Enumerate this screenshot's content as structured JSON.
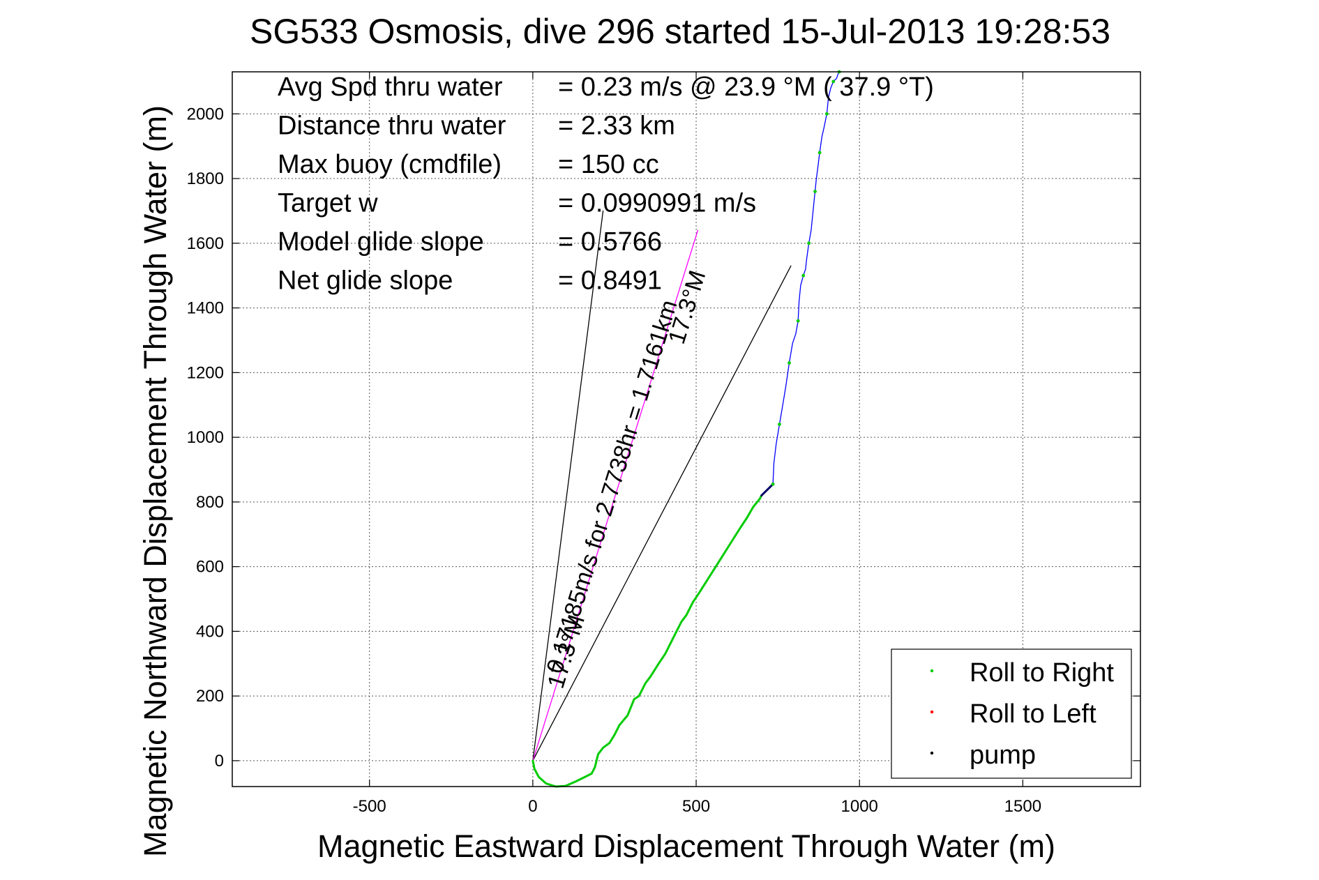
{
  "chart_data": {
    "type": "line",
    "title": "SG533 Osmosis, dive 296 started 15-Jul-2013 19:28:53",
    "xlabel": "Magnetic Eastward Displacement Through Water (m)",
    "ylabel": "Magnetic Northward Displacement Through Water (m)",
    "xlim": [
      -920,
      1860
    ],
    "ylim": [
      -80,
      2130
    ],
    "xticks": [
      -500,
      0,
      500,
      1000,
      1500
    ],
    "yticks": [
      0,
      200,
      400,
      600,
      800,
      1000,
      1200,
      1400,
      1600,
      1800,
      2000
    ],
    "grid": true,
    "legend_position": "bottom-right",
    "legend": [
      {
        "label": "Roll to Right",
        "color": "#00cc00"
      },
      {
        "label": "Roll to Left",
        "color": "#ff0000"
      },
      {
        "label": "pump",
        "color": "#000000"
      }
    ],
    "stats": [
      {
        "label": "Avg Spd thru water",
        "value": "=  0.23 m/s @  23.9 °M ( 37.9 °T)"
      },
      {
        "label": "Distance thru water",
        "value": "=  2.33 km"
      },
      {
        "label": "Max buoy (cmdfile)",
        "value": "= 150 cc"
      },
      {
        "label": "Target w",
        "value": "= 0.0990991 m/s"
      },
      {
        "label": "Model glide slope",
        "value": "= 0.5766"
      },
      {
        "label": "Net glide slope",
        "value": "= 0.8491"
      }
    ],
    "annotations": [
      {
        "text": "17.3°M",
        "x": 125,
        "y": 330,
        "angle_deg": 72.7
      },
      {
        "text": "17.3°M",
        "x": 495,
        "y": 1395,
        "angle_deg": 72.7
      },
      {
        "text": "0.17185m/s for 2.7738hr = 1.7161km",
        "x": 265,
        "y": 840,
        "angle_deg": 72.7
      }
    ],
    "series": [
      {
        "type": "line",
        "color": "#000000",
        "x": [
          0,
          215
        ],
        "y": [
          0,
          1700
        ]
      },
      {
        "type": "line",
        "color": "#000000",
        "x": [
          0,
          790
        ],
        "y": [
          0,
          1530
        ]
      },
      {
        "type": "line",
        "color": "#ff00ff",
        "x": [
          0,
          505
        ],
        "y": [
          0,
          1640
        ]
      },
      {
        "name": "Roll to Right",
        "type": "line",
        "color": "#00cc00",
        "x": [
          0,
          5,
          18,
          40,
          70,
          100,
          130,
          160,
          180,
          190,
          195,
          200,
          215,
          235,
          250,
          265,
          290,
          310,
          325,
          345,
          360,
          385,
          405,
          420,
          440,
          455,
          470,
          490,
          510,
          535,
          560,
          585,
          610,
          635,
          655,
          675,
          695,
          700
        ],
        "y": [
          0,
          -25,
          -50,
          -70,
          -80,
          -78,
          -65,
          -50,
          -40,
          -20,
          0,
          20,
          40,
          55,
          80,
          110,
          140,
          190,
          200,
          240,
          260,
          300,
          330,
          360,
          400,
          430,
          450,
          490,
          520,
          560,
          600,
          640,
          680,
          720,
          750,
          785,
          810,
          820
        ]
      },
      {
        "name": "pump",
        "type": "line",
        "color": "#000066",
        "x": [
          700,
          720,
          735
        ],
        "y": [
          820,
          840,
          855
        ]
      },
      {
        "type": "line",
        "color": "#0000ff",
        "x": [
          735,
          738,
          745,
          755,
          765,
          775,
          785,
          795,
          805,
          812,
          815,
          820,
          828,
          835,
          838,
          845,
          852,
          858,
          864,
          868,
          872,
          878,
          885,
          892,
          900,
          905,
          912,
          920,
          930,
          935,
          938
        ],
        "y": [
          855,
          920,
          980,
          1040,
          1100,
          1160,
          1230,
          1290,
          1320,
          1360,
          1420,
          1470,
          1500,
          1520,
          1550,
          1600,
          1640,
          1700,
          1760,
          1800,
          1830,
          1880,
          1930,
          1960,
          2000,
          2050,
          2080,
          2100,
          2110,
          2125,
          2130
        ]
      }
    ]
  }
}
